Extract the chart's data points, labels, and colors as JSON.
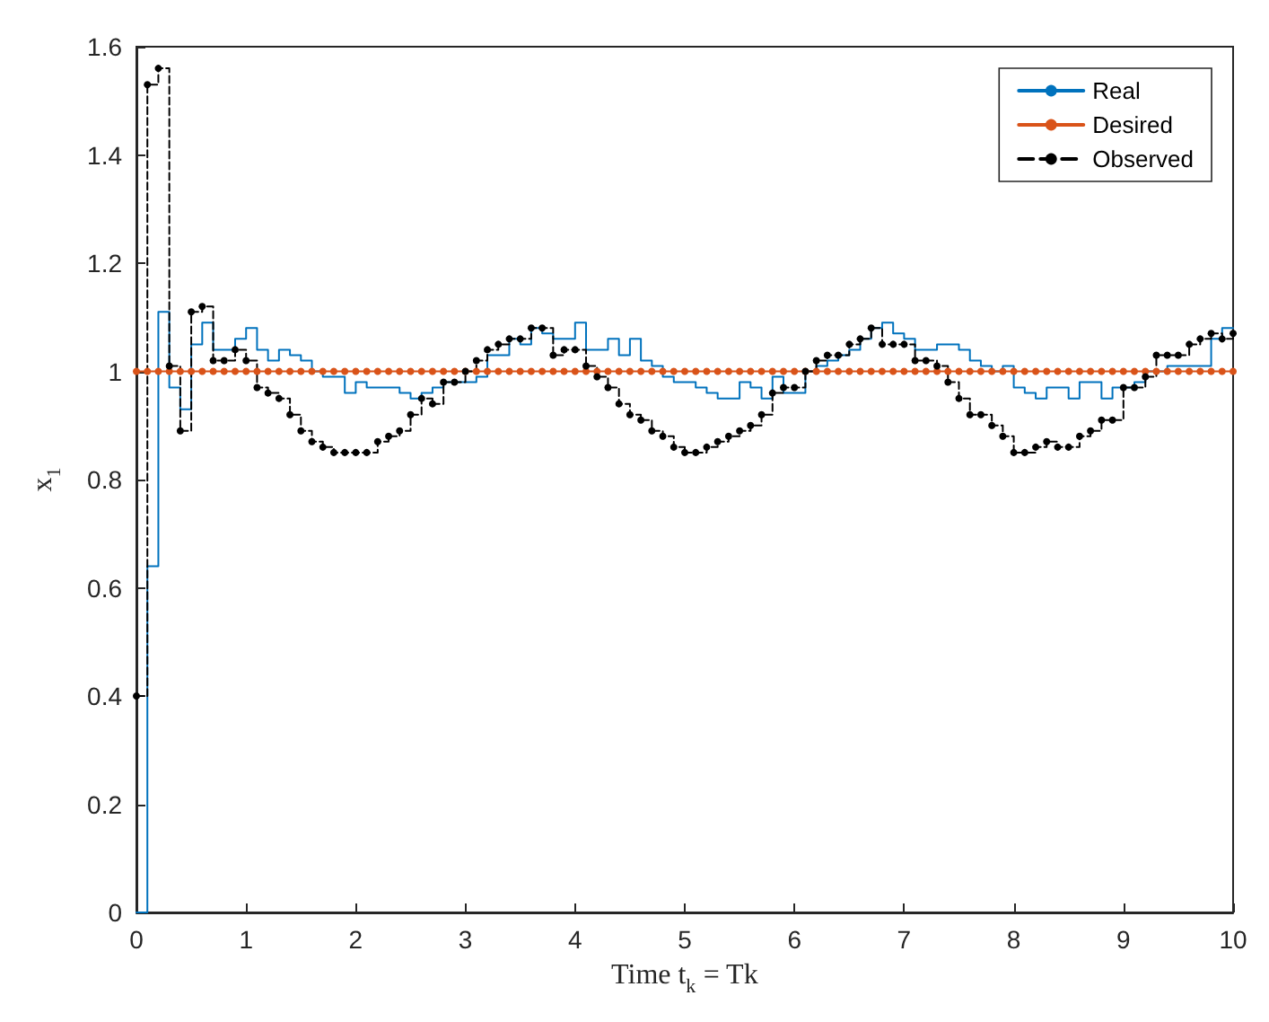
{
  "chart_data": {
    "type": "step",
    "xlabel": "Time t$_{k}$ = Tk",
    "ylabel": "x$_{1}$",
    "x": [
      0,
      0.1,
      0.2,
      0.3,
      0.4,
      0.5,
      0.6,
      0.7,
      0.8,
      0.9,
      1,
      1.1,
      1.2,
      1.3,
      1.4,
      1.5,
      1.6,
      1.7,
      1.8,
      1.9,
      2,
      2.1,
      2.2,
      2.3,
      2.4,
      2.5,
      2.6,
      2.7,
      2.8,
      2.9,
      3,
      3.1,
      3.2,
      3.3,
      3.4,
      3.5,
      3.6,
      3.7,
      3.8,
      3.9,
      4,
      4.1,
      4.2,
      4.3,
      4.4,
      4.5,
      4.6,
      4.7,
      4.8,
      4.9,
      5,
      5.1,
      5.2,
      5.3,
      5.4,
      5.5,
      5.6,
      5.7,
      5.8,
      5.9,
      6,
      6.1,
      6.2,
      6.3,
      6.4,
      6.5,
      6.6,
      6.7,
      6.8,
      6.9,
      7,
      7.1,
      7.2,
      7.3,
      7.4,
      7.5,
      7.6,
      7.7,
      7.8,
      7.9,
      8,
      8.1,
      8.2,
      8.3,
      8.4,
      8.5,
      8.6,
      8.7,
      8.8,
      8.9,
      9,
      9.1,
      9.2,
      9.3,
      9.4,
      9.5,
      9.6,
      9.7,
      9.8,
      9.9,
      10
    ],
    "series": [
      {
        "name": "Real",
        "color": "#0072bd",
        "marker": "none",
        "line_style": "solid",
        "values": [
          0,
          0.64,
          1.11,
          0.97,
          0.93,
          1.05,
          1.09,
          1.04,
          1.04,
          1.06,
          1.08,
          1.04,
          1.02,
          1.04,
          1.03,
          1.02,
          1.0,
          0.99,
          0.99,
          0.96,
          0.98,
          0.97,
          0.97,
          0.97,
          0.96,
          0.95,
          0.96,
          0.97,
          0.98,
          0.98,
          0.98,
          0.99,
          1.03,
          1.03,
          1.06,
          1.05,
          1.08,
          1.07,
          1.06,
          1.06,
          1.09,
          1.04,
          1.04,
          1.06,
          1.03,
          1.06,
          1.02,
          1.01,
          0.99,
          0.98,
          0.98,
          0.97,
          0.96,
          0.95,
          0.95,
          0.98,
          0.97,
          0.95,
          0.99,
          0.96,
          0.96,
          1.0,
          1.01,
          1.02,
          1.03,
          1.04,
          1.06,
          1.08,
          1.09,
          1.07,
          1.06,
          1.04,
          1.04,
          1.05,
          1.05,
          1.04,
          1.02,
          1.01,
          1.0,
          1.01,
          0.97,
          0.96,
          0.95,
          0.97,
          0.97,
          0.95,
          0.98,
          0.98,
          0.95,
          0.97,
          0.97,
          0.98,
          1.0,
          1.0,
          1.01,
          1.01,
          1.01,
          1.01,
          1.06,
          1.08,
          1.08
        ]
      },
      {
        "name": "Desired",
        "type": "line",
        "color": "#d95319",
        "marker": "circle",
        "line_style": "solid",
        "values": [
          1,
          1,
          1,
          1,
          1,
          1,
          1,
          1,
          1,
          1,
          1,
          1,
          1,
          1,
          1,
          1,
          1,
          1,
          1,
          1,
          1,
          1,
          1,
          1,
          1,
          1,
          1,
          1,
          1,
          1,
          1,
          1,
          1,
          1,
          1,
          1,
          1,
          1,
          1,
          1,
          1,
          1,
          1,
          1,
          1,
          1,
          1,
          1,
          1,
          1,
          1,
          1,
          1,
          1,
          1,
          1,
          1,
          1,
          1,
          1,
          1,
          1,
          1,
          1,
          1,
          1,
          1,
          1,
          1,
          1,
          1,
          1,
          1,
          1,
          1,
          1,
          1,
          1,
          1,
          1,
          1,
          1,
          1,
          1,
          1,
          1,
          1,
          1,
          1,
          1,
          1,
          1,
          1,
          1,
          1,
          1,
          1,
          1,
          1,
          1,
          1
        ]
      },
      {
        "name": "Observed",
        "color": "#000000",
        "marker": "circle",
        "line_style": "dashed",
        "values": [
          0.4,
          1.53,
          1.56,
          1.01,
          0.89,
          1.11,
          1.12,
          1.02,
          1.02,
          1.04,
          1.02,
          0.97,
          0.96,
          0.95,
          0.92,
          0.89,
          0.87,
          0.86,
          0.85,
          0.85,
          0.85,
          0.85,
          0.87,
          0.88,
          0.89,
          0.92,
          0.95,
          0.94,
          0.98,
          0.98,
          1.0,
          1.02,
          1.04,
          1.05,
          1.06,
          1.06,
          1.08,
          1.08,
          1.03,
          1.04,
          1.04,
          1.01,
          0.99,
          0.97,
          0.94,
          0.92,
          0.91,
          0.89,
          0.88,
          0.86,
          0.85,
          0.85,
          0.86,
          0.87,
          0.88,
          0.89,
          0.9,
          0.92,
          0.96,
          0.97,
          0.97,
          1.0,
          1.02,
          1.03,
          1.03,
          1.05,
          1.06,
          1.08,
          1.05,
          1.05,
          1.05,
          1.02,
          1.02,
          1.01,
          0.98,
          0.95,
          0.92,
          0.92,
          0.9,
          0.88,
          0.85,
          0.85,
          0.86,
          0.87,
          0.86,
          0.86,
          0.88,
          0.89,
          0.91,
          0.91,
          0.97,
          0.97,
          0.99,
          1.03,
          1.03,
          1.03,
          1.05,
          1.06,
          1.07,
          1.06,
          1.07
        ]
      }
    ],
    "xlim": [
      0,
      10
    ],
    "xticks": [
      0,
      1,
      2,
      3,
      4,
      5,
      6,
      7,
      8,
      9,
      10
    ],
    "ylim": [
      0,
      1.6
    ],
    "yticks": [
      0,
      0.2,
      0.4,
      0.6,
      0.8,
      1,
      1.2,
      1.4,
      1.6
    ],
    "grid": false,
    "legend": "top right"
  }
}
